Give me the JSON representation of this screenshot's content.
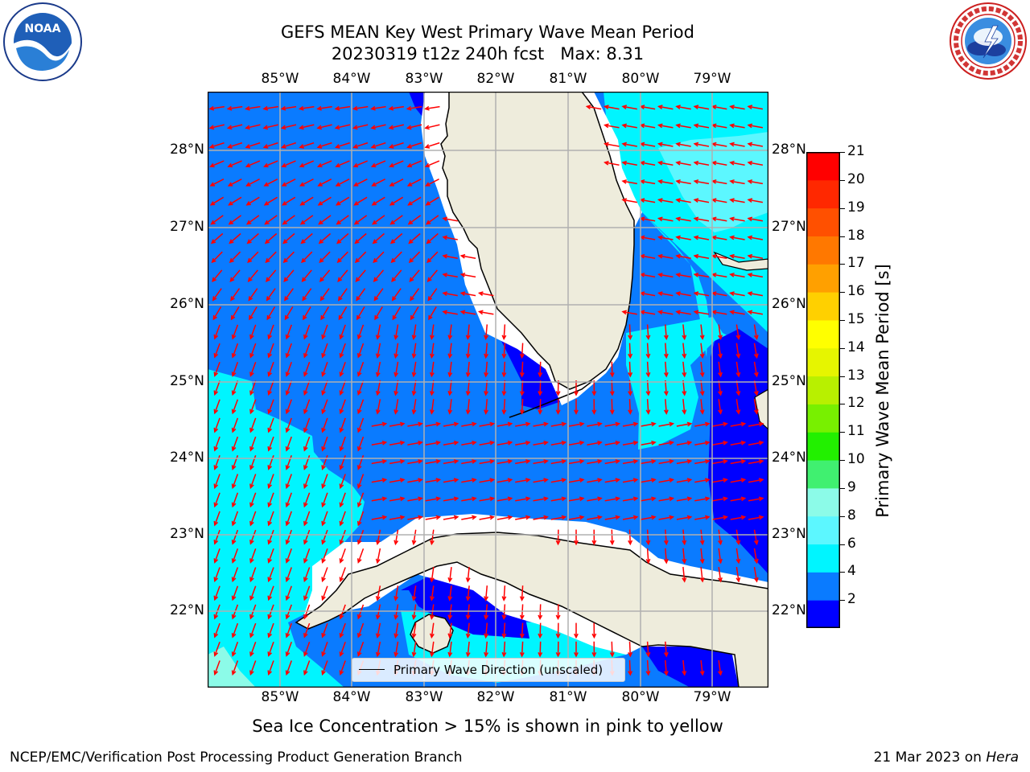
{
  "title": {
    "line1": "GEFS MEAN Key West Primary Wave Mean Period",
    "line2": "20230319 t12z 240h fcst   Max: 8.31"
  },
  "axes": {
    "lon_labels": [
      "85°W",
      "84°W",
      "83°W",
      "82°W",
      "81°W",
      "80°W",
      "79°W"
    ],
    "lat_labels": [
      "28°N",
      "27°N",
      "26°N",
      "25°N",
      "24°N",
      "23°N",
      "22°N"
    ]
  },
  "colorbar": {
    "title": "Primary Wave Mean Period [s]",
    "ticks": [
      "21",
      "20",
      "19",
      "18",
      "17",
      "16",
      "15",
      "14",
      "13",
      "12",
      "11",
      "10",
      "9",
      "8",
      "6",
      "4",
      "2"
    ],
    "levels": [
      {
        "range": "2-4",
        "color": "#0000ff"
      },
      {
        "range": "4-6",
        "color": "#0a7bff"
      },
      {
        "range": "6-8",
        "color": "#00f5ff"
      },
      {
        "range": "8",
        "color": "#5cf7ff"
      },
      {
        "range": "9",
        "color": "#8cfbe8"
      },
      {
        "range": "10",
        "color": "#40f070"
      },
      {
        "range": "11",
        "color": "#22f000"
      },
      {
        "range": "12",
        "color": "#78f000"
      },
      {
        "range": "13",
        "color": "#b8f000"
      },
      {
        "range": "14",
        "color": "#e6f500"
      },
      {
        "range": "15",
        "color": "#ffff00"
      },
      {
        "range": "16",
        "color": "#ffd000"
      },
      {
        "range": "17",
        "color": "#ffa000"
      },
      {
        "range": "18",
        "color": "#ff7800"
      },
      {
        "range": "19",
        "color": "#ff5000"
      },
      {
        "range": "20",
        "color": "#ff2800"
      },
      {
        "range": "21",
        "color": "#ff0000"
      }
    ]
  },
  "legend": {
    "label": "Primary Wave Direction (unscaled)"
  },
  "note": "Sea Ice Concentration > 15% is shown in pink to yellow",
  "credit_left": "NCEP/EMC/Verification Post Processing Product Generation Branch",
  "credit_date": "21 Mar 2023 on ",
  "credit_host": "Hera",
  "colors": {
    "land": "#eeecdc",
    "period_2_4": "#0000ff",
    "period_4_6": "#0a7bff",
    "period_6_8": "#00f5ff",
    "period_8_9": "#5cf7ff",
    "arrow": "#ff0000",
    "grid": "#b0b0b0"
  },
  "logos": {
    "left": "NOAA",
    "right": "NATIONAL WEATHER SERVICE"
  }
}
